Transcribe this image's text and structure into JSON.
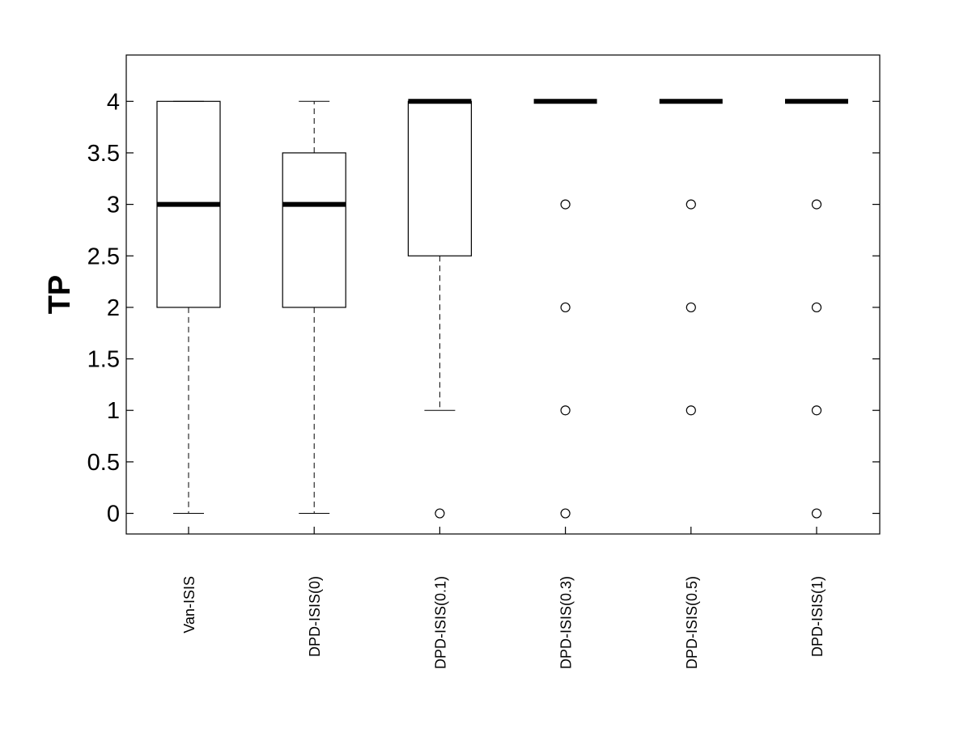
{
  "chart_data": {
    "type": "box",
    "title": "",
    "xlabel": "",
    "ylabel": "TP",
    "ylim": [
      -0.2,
      4.45
    ],
    "yticks": [
      0,
      0.5,
      1,
      1.5,
      2,
      2.5,
      3,
      3.5,
      4
    ],
    "ytick_labels": [
      "0",
      "0.5",
      "1",
      "1.5",
      "2",
      "2.5",
      "3",
      "3.5",
      "4"
    ],
    "categories": [
      "Van-ISIS",
      "DPD-ISIS(0)",
      "DPD-ISIS(0.1)",
      "DPD-ISIS(0.3)",
      "DPD-ISIS(0.5)",
      "DPD-ISIS(1)"
    ],
    "grid": false,
    "colors": {
      "stroke": "#000000",
      "median": "#000000",
      "background": "#ffffff"
    },
    "boxes": [
      {
        "whisker_low": 0,
        "q1": 2,
        "median": 3,
        "q3": 4,
        "whisker_high": 4,
        "outliers": []
      },
      {
        "whisker_low": 0,
        "q1": 2,
        "median": 3,
        "q3": 3.5,
        "whisker_high": 4,
        "outliers": []
      },
      {
        "whisker_low": 1,
        "q1": 2.5,
        "median": 4,
        "q3": 4,
        "whisker_high": 4,
        "outliers": [
          0
        ]
      },
      {
        "whisker_low": 4,
        "q1": 4,
        "median": 4,
        "q3": 4,
        "whisker_high": 4,
        "outliers": [
          3,
          2,
          1,
          0
        ]
      },
      {
        "whisker_low": 4,
        "q1": 4,
        "median": 4,
        "q3": 4,
        "whisker_high": 4,
        "outliers": [
          3,
          2,
          1
        ]
      },
      {
        "whisker_low": 4,
        "q1": 4,
        "median": 4,
        "q3": 4,
        "whisker_high": 4,
        "outliers": [
          3,
          2,
          1,
          0
        ]
      }
    ]
  }
}
